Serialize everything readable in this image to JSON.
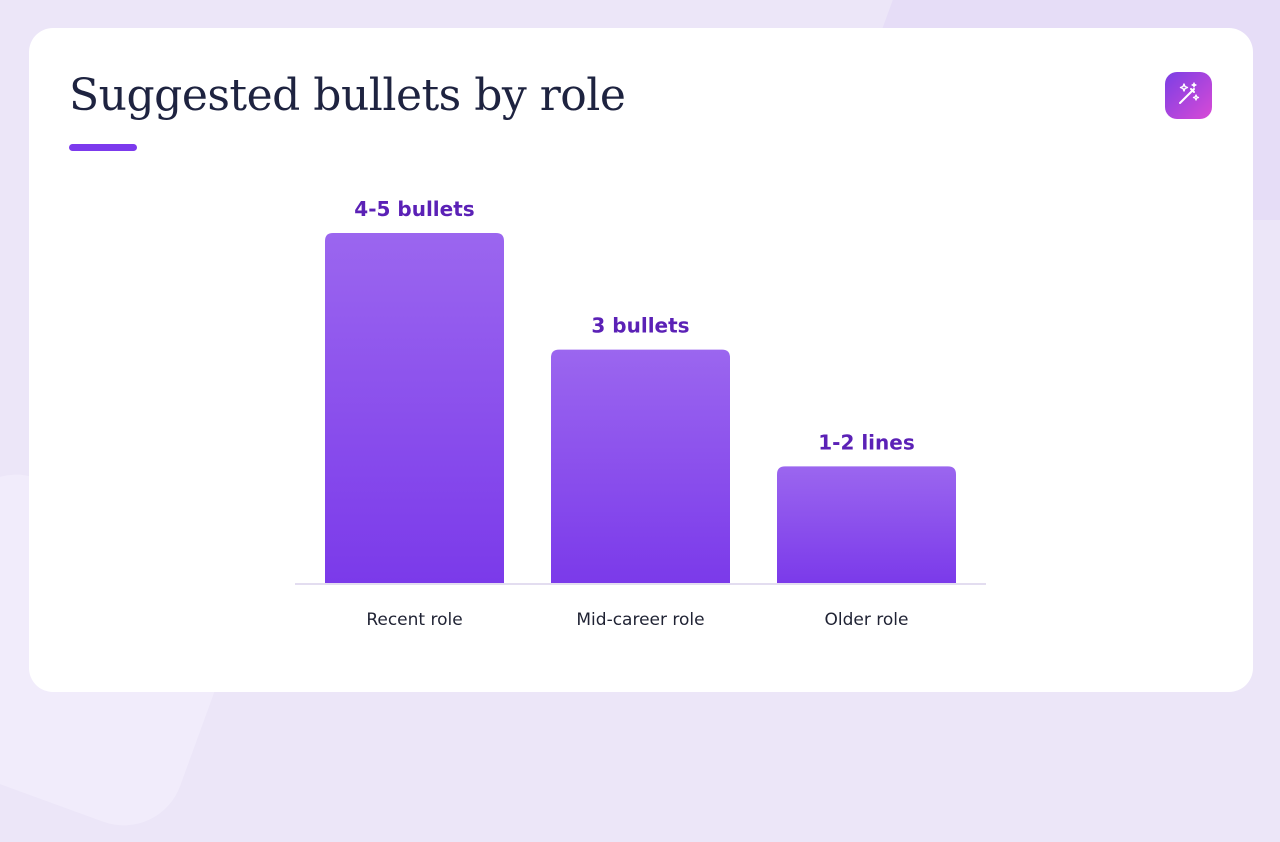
{
  "slide": {
    "title": "Suggested bullets by role"
  },
  "toolbar": {
    "magic_icon": "magic-wand-icon"
  },
  "colors": {
    "accent": "#7c3aed",
    "bar_top": "#9b66ef",
    "bar_bottom": "#7b3aea",
    "label": "#5b21b6"
  },
  "chart_data": {
    "type": "bar",
    "categories": [
      "Recent role",
      "Mid-career role",
      "Older role"
    ],
    "values": [
      3,
      2,
      1
    ],
    "data_labels": [
      "4-5 bullets",
      "3 bullets",
      "1-2 lines"
    ],
    "title": "",
    "xlabel": "",
    "ylabel": "",
    "ylim": [
      0,
      3
    ],
    "grid": false,
    "legend": "none"
  }
}
